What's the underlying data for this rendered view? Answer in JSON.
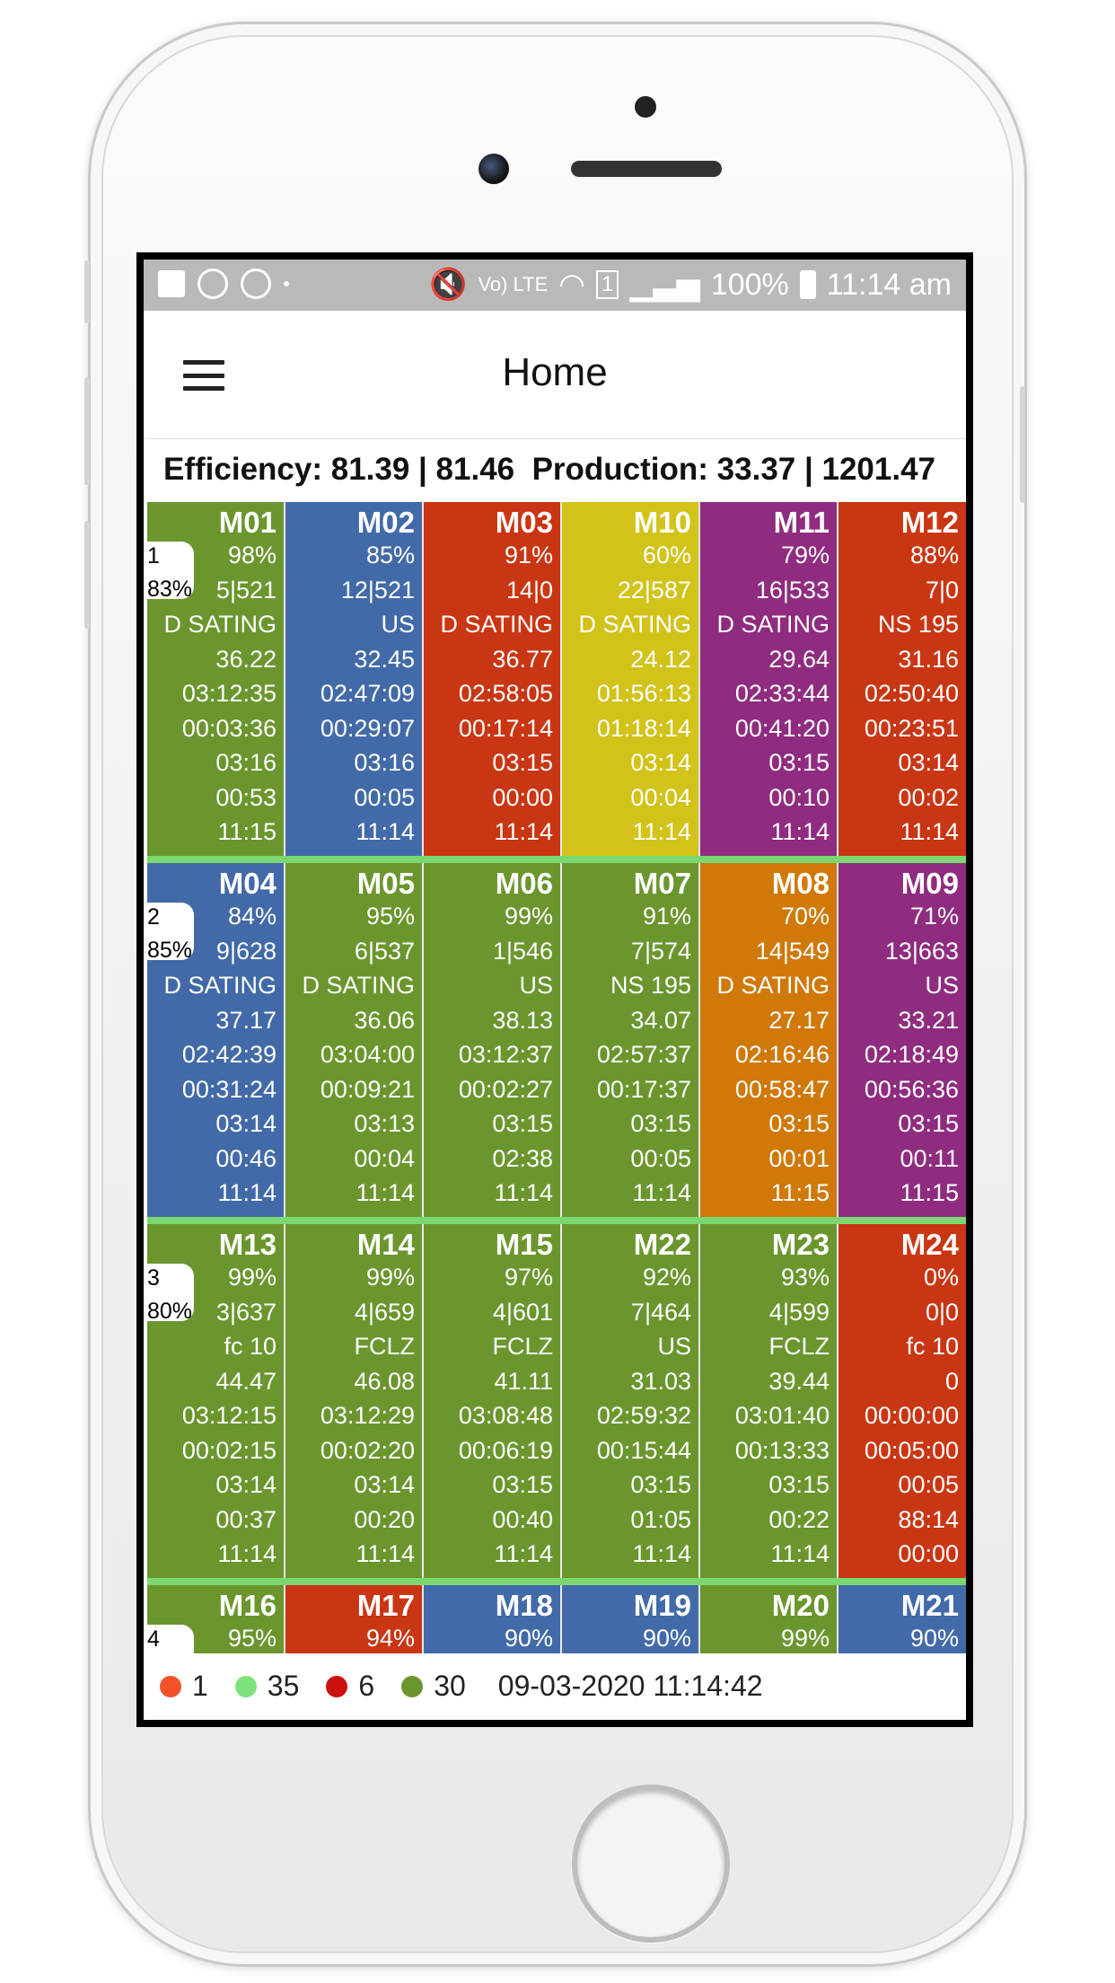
{
  "status_bar": {
    "battery": "100%",
    "time": "11:14 am",
    "net_label": "Vo) LTE",
    "sim": "1",
    "left_icons": [
      "flipboard-icon",
      "whatsapp-icon",
      "dnd-icon",
      "dot-icon"
    ],
    "right_icons": [
      "mute-icon",
      "volte-icon",
      "wifi-icon",
      "sim-icon",
      "signal-icon",
      "battery-icon"
    ]
  },
  "app_bar": {
    "title": "Home"
  },
  "summary": {
    "text": "Efficiency: 81.39 | 81.46  Production: 33.37 | 1201.47"
  },
  "colors": {
    "green": "#6b962e",
    "blue": "#426aa8",
    "red": "#c93613",
    "yellow": "#d1c31a",
    "purple": "#8f2c7f",
    "orange": "#d07808",
    "separator": "#7bd870"
  },
  "rows": [
    {
      "badge": {
        "num": "1",
        "pct": "83%"
      },
      "tiles": [
        {
          "name": "M01",
          "color": "green",
          "values": [
            "98%",
            "5|521",
            "D SATING",
            "36.22",
            "03:12:35",
            "00:03:36",
            "03:16",
            "00:53",
            "11:15"
          ]
        },
        {
          "name": "M02",
          "color": "blue",
          "values": [
            "85%",
            "12|521",
            "US",
            "32.45",
            "02:47:09",
            "00:29:07",
            "03:16",
            "00:05",
            "11:14"
          ]
        },
        {
          "name": "M03",
          "color": "red",
          "values": [
            "91%",
            "14|0",
            "D SATING",
            "36.77",
            "02:58:05",
            "00:17:14",
            "03:15",
            "00:00",
            "11:14"
          ]
        },
        {
          "name": "M10",
          "color": "yellow",
          "values": [
            "60%",
            "22|587",
            "D SATING",
            "24.12",
            "01:56:13",
            "01:18:14",
            "03:14",
            "00:04",
            "11:14"
          ]
        },
        {
          "name": "M11",
          "color": "purple",
          "values": [
            "79%",
            "16|533",
            "D SATING",
            "29.64",
            "02:33:44",
            "00:41:20",
            "03:15",
            "00:10",
            "11:14"
          ]
        },
        {
          "name": "M12",
          "color": "red",
          "values": [
            "88%",
            "7|0",
            "NS 195",
            "31.16",
            "02:50:40",
            "00:23:51",
            "03:14",
            "00:02",
            "11:14"
          ]
        }
      ]
    },
    {
      "badge": {
        "num": "2",
        "pct": "85%"
      },
      "tiles": [
        {
          "name": "M04",
          "color": "blue",
          "values": [
            "84%",
            "9|628",
            "D SATING",
            "37.17",
            "02:42:39",
            "00:31:24",
            "03:14",
            "00:46",
            "11:14"
          ]
        },
        {
          "name": "M05",
          "color": "green",
          "values": [
            "95%",
            "6|537",
            "D SATING",
            "36.06",
            "03:04:00",
            "00:09:21",
            "03:13",
            "00:04",
            "11:14"
          ]
        },
        {
          "name": "M06",
          "color": "green",
          "values": [
            "99%",
            "1|546",
            "US",
            "38.13",
            "03:12:37",
            "00:02:27",
            "03:15",
            "02:38",
            "11:14"
          ]
        },
        {
          "name": "M07",
          "color": "green",
          "values": [
            "91%",
            "7|574",
            "NS 195",
            "34.07",
            "02:57:37",
            "00:17:37",
            "03:15",
            "00:05",
            "11:14"
          ]
        },
        {
          "name": "M08",
          "color": "orange",
          "values": [
            "70%",
            "14|549",
            "D SATING",
            "27.17",
            "02:16:46",
            "00:58:47",
            "03:15",
            "00:01",
            "11:15"
          ]
        },
        {
          "name": "M09",
          "color": "purple",
          "values": [
            "71%",
            "13|663",
            "US",
            "33.21",
            "02:18:49",
            "00:56:36",
            "03:15",
            "00:11",
            "11:15"
          ]
        }
      ]
    },
    {
      "badge": {
        "num": "3",
        "pct": "80%"
      },
      "tiles": [
        {
          "name": "M13",
          "color": "green",
          "values": [
            "99%",
            "3|637",
            "fc 10",
            "44.47",
            "03:12:15",
            "00:02:15",
            "03:14",
            "00:37",
            "11:14"
          ]
        },
        {
          "name": "M14",
          "color": "green",
          "values": [
            "99%",
            "4|659",
            "FCLZ",
            "46.08",
            "03:12:29",
            "00:02:20",
            "03:14",
            "00:20",
            "11:14"
          ]
        },
        {
          "name": "M15",
          "color": "green",
          "values": [
            "97%",
            "4|601",
            "FCLZ",
            "41.11",
            "03:08:48",
            "00:06:19",
            "03:15",
            "00:40",
            "11:14"
          ]
        },
        {
          "name": "M22",
          "color": "green",
          "values": [
            "92%",
            "7|464",
            "US",
            "31.03",
            "02:59:32",
            "00:15:44",
            "03:15",
            "01:05",
            "11:14"
          ]
        },
        {
          "name": "M23",
          "color": "green",
          "values": [
            "93%",
            "4|599",
            "FCLZ",
            "39.44",
            "03:01:40",
            "00:13:33",
            "03:15",
            "00:22",
            "11:14"
          ]
        },
        {
          "name": "M24",
          "color": "red",
          "values": [
            "0%",
            "0|0",
            "fc 10",
            "0",
            "00:00:00",
            "00:05:00",
            "00:05",
            "88:14",
            "00:00"
          ]
        }
      ]
    },
    {
      "badge": {
        "num": "4",
        "pct": ""
      },
      "tiles": [
        {
          "name": "M16",
          "color": "green",
          "values": [
            "95%"
          ]
        },
        {
          "name": "M17",
          "color": "red",
          "values": [
            "94%"
          ]
        },
        {
          "name": "M18",
          "color": "blue",
          "values": [
            "90%"
          ]
        },
        {
          "name": "M19",
          "color": "blue",
          "values": [
            "90%"
          ]
        },
        {
          "name": "M20",
          "color": "green",
          "values": [
            "99%"
          ]
        },
        {
          "name": "M21",
          "color": "blue",
          "values": [
            "90%"
          ]
        }
      ]
    }
  ],
  "footer": {
    "legend": [
      {
        "color": "#f0522a",
        "count": "1"
      },
      {
        "color": "#7de27a",
        "count": "35"
      },
      {
        "color": "#cc1010",
        "count": "6"
      },
      {
        "color": "#6b962e",
        "count": "30"
      }
    ],
    "timestamp": "09-03-2020 11:14:42"
  }
}
